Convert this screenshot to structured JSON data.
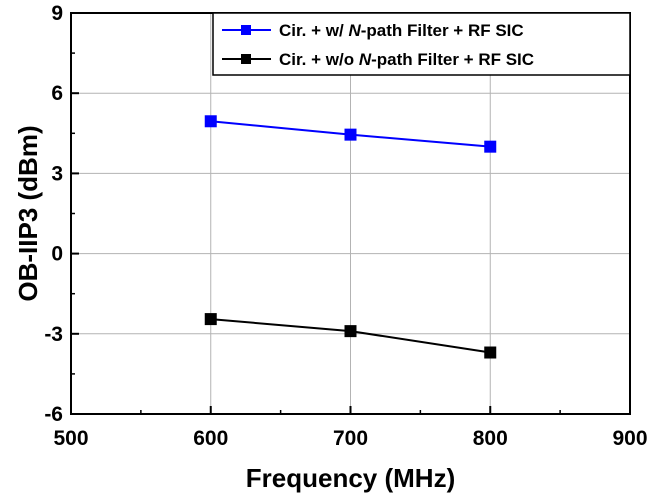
{
  "chart_data": {
    "type": "line",
    "xlabel": "Frequency (MHz)",
    "ylabel": "OB-IIP3 (dBm)",
    "xlim": [
      500,
      900
    ],
    "ylim": [
      -6,
      9
    ],
    "xticks": [
      500,
      600,
      700,
      800,
      900
    ],
    "yticks": [
      -6,
      -3,
      0,
      3,
      6,
      9
    ],
    "grid": true,
    "legend_position": "top-right",
    "x": [
      600,
      700,
      800
    ],
    "series": [
      {
        "name_parts": [
          "Cir. + w/ ",
          "N",
          "-path Filter + RF SIC"
        ],
        "values": [
          4.95,
          4.45,
          4.0
        ],
        "color": "#0000ff",
        "marker": "square"
      },
      {
        "name_parts": [
          "Cir. + w/o ",
          "N",
          "-path Filter + RF SIC"
        ],
        "values": [
          -2.45,
          -2.9,
          -3.7
        ],
        "color": "#000000",
        "marker": "square"
      }
    ]
  }
}
